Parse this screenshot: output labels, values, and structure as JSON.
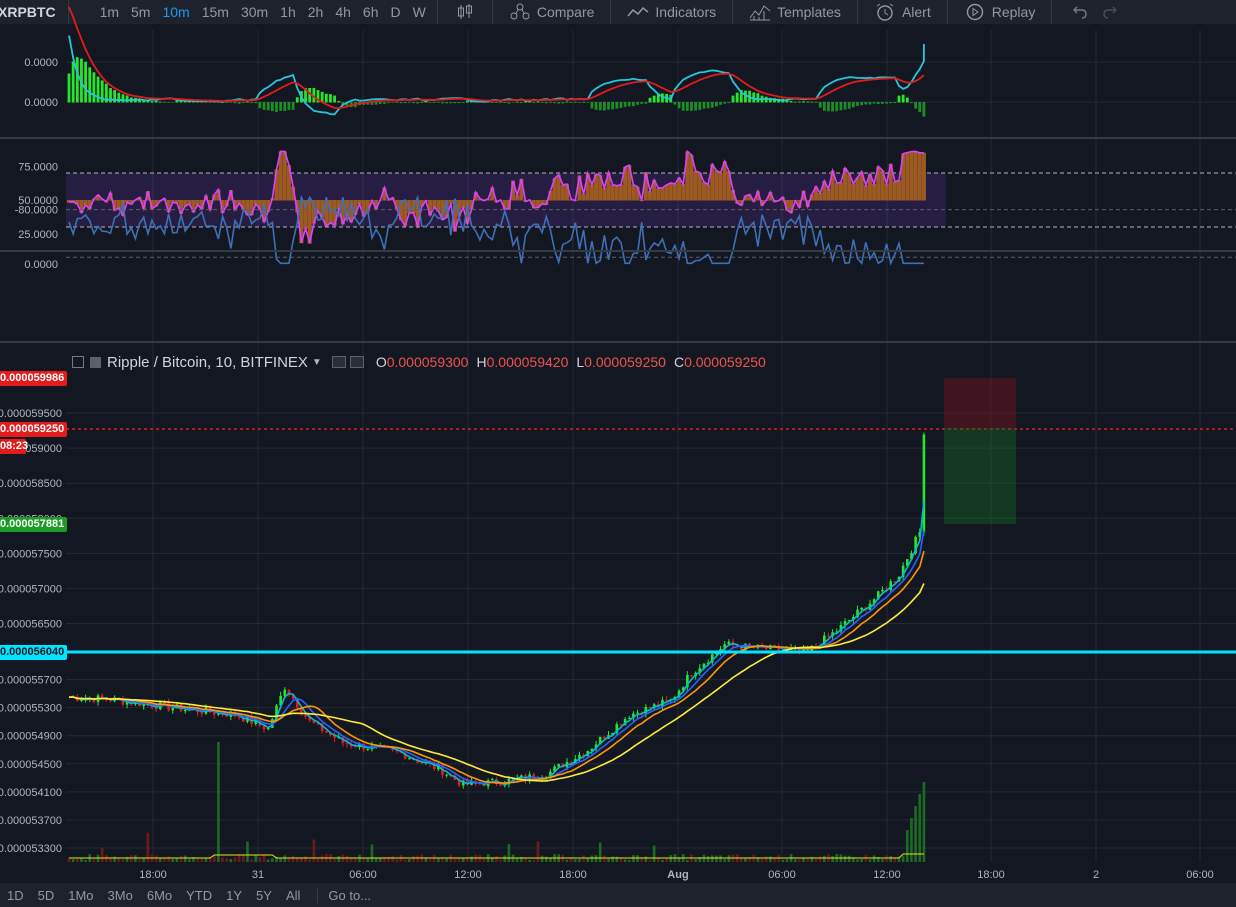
{
  "toolbar": {
    "symbol": "XRPBTC",
    "intervals": [
      "1m",
      "5m",
      "10m",
      "15m",
      "30m",
      "1h",
      "2h",
      "4h",
      "6h",
      "D",
      "W"
    ],
    "active_interval": "10m",
    "compare_label": "Compare",
    "indicators_label": "Indicators",
    "templates_label": "Templates",
    "alert_label": "Alert",
    "replay_label": "Replay"
  },
  "legend": {
    "title": "Ripple / Bitcoin, 10, BITFINEX",
    "o_key": "O",
    "o_val": "0.000059300",
    "h_key": "H",
    "h_val": "0.000059420",
    "l_key": "L",
    "l_val": "0.000059250",
    "c_key": "C",
    "c_val": "0.000059250"
  },
  "axes": {
    "macd_ticks": [
      "0.0000",
      "0.0000"
    ],
    "rsi_ticks": [
      "75.0000",
      "50.0000",
      "25.0000"
    ],
    "wr_ticks": [
      "0.0000",
      "-80.0000"
    ],
    "price_ticks": [
      "0.000059500",
      "0.000059000",
      "0.000058500",
      "0.000058000",
      "0.000057500",
      "0.000057000",
      "0.000056500",
      "0.000055700",
      "0.000055300",
      "0.000054900",
      "0.000054500",
      "0.000054100",
      "0.000053700",
      "0.000053300"
    ],
    "time_labels": [
      "18:00",
      "31",
      "06:00",
      "12:00",
      "18:00",
      "Aug",
      "06:00",
      "12:00",
      "18:00",
      "2",
      "06:00"
    ]
  },
  "price_tags": {
    "top": "0.000059986",
    "current": "0.000059250",
    "countdown": "08:23",
    "stop": "0.000057881",
    "level": "0.000056040"
  },
  "colors": {
    "up": "#26e62c",
    "down": "#e31b1b",
    "macd": "#26c6da",
    "signal": "#e31b1b",
    "rsi": "#e040fb",
    "wr": "#3f6fb5",
    "level": "#00e5ff",
    "ema_fast": "#00bcd4",
    "ema_mid": "#2962ff",
    "ema_slow": "#ff9800",
    "sma": "#ffeb3b"
  },
  "bottom": {
    "ranges": [
      "1D",
      "5D",
      "1Mo",
      "3Mo",
      "6Mo",
      "YTD",
      "1Y",
      "5Y",
      "All"
    ],
    "goto_label": "Go to..."
  }
}
